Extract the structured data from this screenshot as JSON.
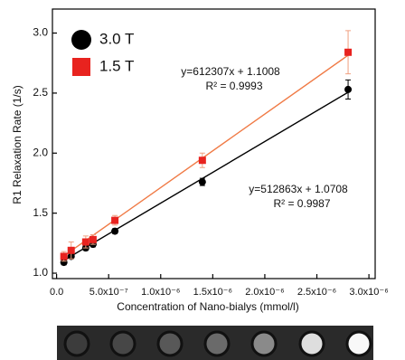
{
  "chart_data": {
    "type": "scatter",
    "x_label": "Concentration of Nano-bialys (mmol/l)",
    "y_label": "R1 Relaxation Rate (1/s)",
    "x": [
      7e-08,
      1.4e-07,
      2.8e-07,
      3.5e-07,
      5.6e-07,
      1.4e-06,
      2.8e-06
    ],
    "series": [
      {
        "name": "3.0 T",
        "color": "#000000",
        "marker": "circle",
        "fit_color": "#000000",
        "values": [
          1.09,
          1.14,
          1.21,
          1.24,
          1.35,
          1.76,
          2.53
        ],
        "errors": [
          0.02,
          0.02,
          0.02,
          0.02,
          0.02,
          0.03,
          0.08
        ],
        "fit": {
          "slope": 512863,
          "intercept": 1.0708,
          "equation": "y=512863x + 1.0708",
          "r2": "R² = 0.9987"
        }
      },
      {
        "name": "1.5 T",
        "color": "#e8231f",
        "marker": "square",
        "fit_color": "#f07a45",
        "values": [
          1.14,
          1.19,
          1.26,
          1.28,
          1.44,
          1.94,
          2.84
        ],
        "errors": [
          0.04,
          0.07,
          0.05,
          0.04,
          0.04,
          0.06,
          0.18
        ],
        "fit": {
          "slope": 612307,
          "intercept": 1.1008,
          "equation": "y=612307x + 1.1008",
          "r2": "R² = 0.9993"
        }
      }
    ],
    "xlim": [
      -4e-08,
      3.06e-06
    ],
    "ylim": [
      0.955,
      3.2
    ],
    "xticks": [
      {
        "value": 0,
        "label": "0.0"
      },
      {
        "value": 5e-07,
        "label": "5.0x10⁻⁷"
      },
      {
        "value": 1e-06,
        "label": "1.0x10⁻⁶"
      },
      {
        "value": 1.5e-06,
        "label": "1.5x10⁻⁶"
      },
      {
        "value": 2e-06,
        "label": "2.0x10⁻⁶"
      },
      {
        "value": 2.5e-06,
        "label": "2.5x10⁻⁶"
      },
      {
        "value": 3e-06,
        "label": "3.0x10⁻⁶"
      }
    ],
    "yticks": [
      {
        "value": 1,
        "label": "1.0"
      },
      {
        "value": 1.5,
        "label": "1.5"
      },
      {
        "value": 2,
        "label": "2.0"
      },
      {
        "value": 2.5,
        "label": "2.5"
      },
      {
        "value": 3,
        "label": "3.0"
      }
    ],
    "legend": "upper-left",
    "grid": false
  }
}
